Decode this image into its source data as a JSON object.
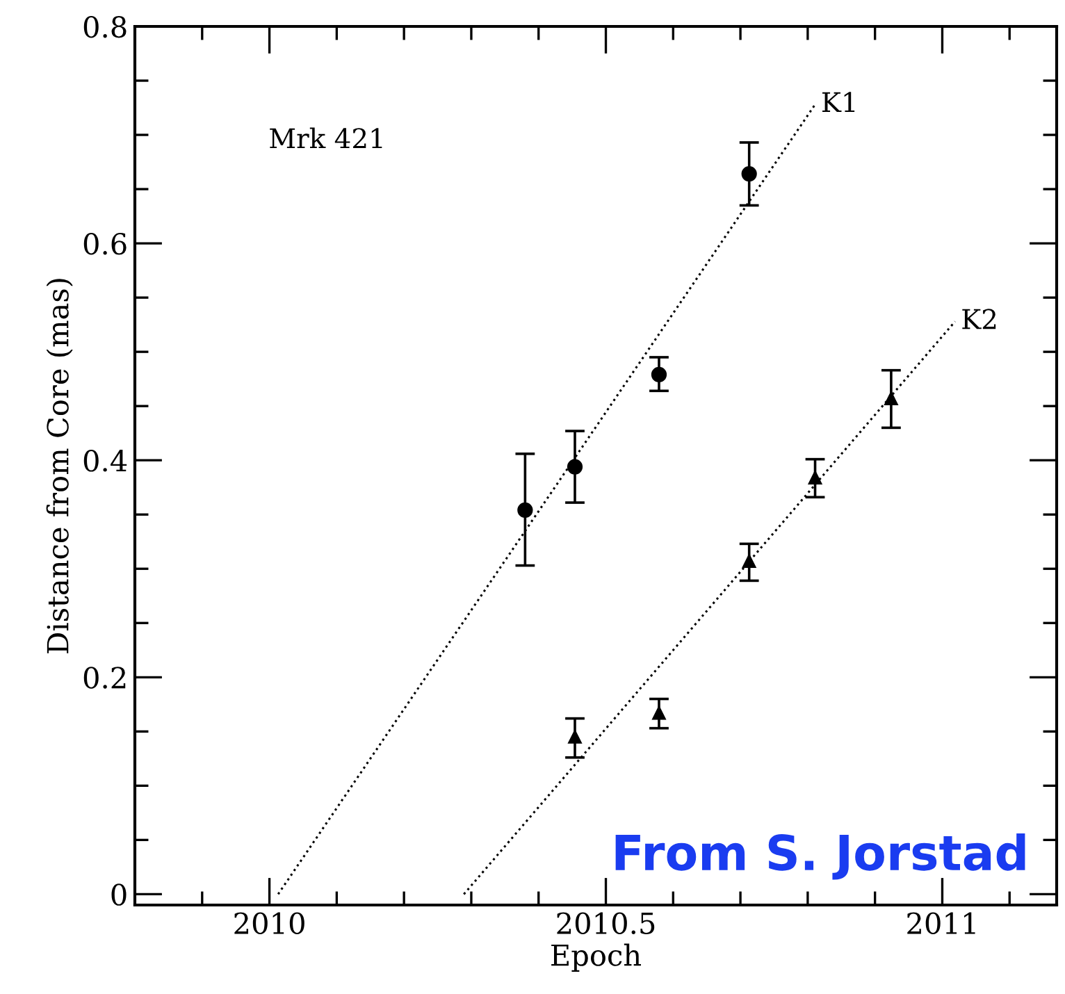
{
  "chart_data": {
    "type": "scatter",
    "xlabel": "Epoch",
    "ylabel": "Distance from Core (mas)",
    "xlim": [
      2009.8,
      2011.17
    ],
    "ylim": [
      -0.01,
      0.8
    ],
    "xticks": [
      {
        "value": 2009.9,
        "label": null
      },
      {
        "value": 2010,
        "label": "2010"
      },
      {
        "value": 2010.1,
        "label": null
      },
      {
        "value": 2010.2,
        "label": null
      },
      {
        "value": 2010.3,
        "label": null
      },
      {
        "value": 2010.4,
        "label": null
      },
      {
        "value": 2010.5,
        "label": "2010.5"
      },
      {
        "value": 2010.6,
        "label": null
      },
      {
        "value": 2010.7,
        "label": null
      },
      {
        "value": 2010.8,
        "label": null
      },
      {
        "value": 2010.9,
        "label": null
      },
      {
        "value": 2011,
        "label": "2011"
      },
      {
        "value": 2011.1,
        "label": null
      }
    ],
    "yticks": [
      0,
      {
        "value": 0.05,
        "label": null
      },
      {
        "value": 0.1,
        "label": null
      },
      {
        "value": 0.15,
        "label": null
      },
      0.2,
      {
        "value": 0.25,
        "label": null
      },
      {
        "value": 0.3,
        "label": null
      },
      {
        "value": 0.35,
        "label": null
      },
      0.4,
      {
        "value": 0.45,
        "label": null
      },
      {
        "value": 0.5,
        "label": null
      },
      {
        "value": 0.55,
        "label": null
      },
      0.6,
      {
        "value": 0.65,
        "label": null
      },
      {
        "value": 0.7,
        "label": null
      },
      {
        "value": 0.75,
        "label": null
      },
      0.8
    ],
    "grid": false,
    "legend": false,
    "series": [
      {
        "color": "#000000",
        "marker": "circle",
        "x": [
          2010.38,
          2010.454,
          2010.579,
          2010.713
        ],
        "values": [
          0.354,
          0.394,
          0.479,
          0.664
        ],
        "errors": [
          [
            0.303,
            0.406
          ],
          [
            0.361,
            0.427
          ],
          [
            0.464,
            0.495
          ],
          [
            0.635,
            0.693
          ]
        ]
      },
      {
        "color": "#000000",
        "marker": "triangle",
        "x": [
          2010.454,
          2010.579,
          2010.713,
          2010.811,
          2010.924
        ],
        "values": [
          0.145,
          0.167,
          0.307,
          0.384,
          0.457
        ],
        "errors": [
          [
            0.126,
            0.162
          ],
          [
            0.153,
            0.18
          ],
          [
            0.289,
            0.323
          ],
          [
            0.366,
            0.401
          ],
          [
            0.43,
            0.483
          ]
        ]
      },
      {
        "type": "line",
        "name": "K1",
        "color": "#000000",
        "line_style": "dotted",
        "x": [
          2010.013,
          2010.811
        ],
        "values": [
          0,
          0.728
        ]
      },
      {
        "type": "line",
        "name": "K2",
        "color": "#000000",
        "line_style": "dotted",
        "x": [
          2010.289,
          2011.019
        ],
        "values": [
          0,
          0.528
        ]
      }
    ],
    "annotations": [
      "Mrk 421",
      "From S. Jorstad"
    ]
  }
}
